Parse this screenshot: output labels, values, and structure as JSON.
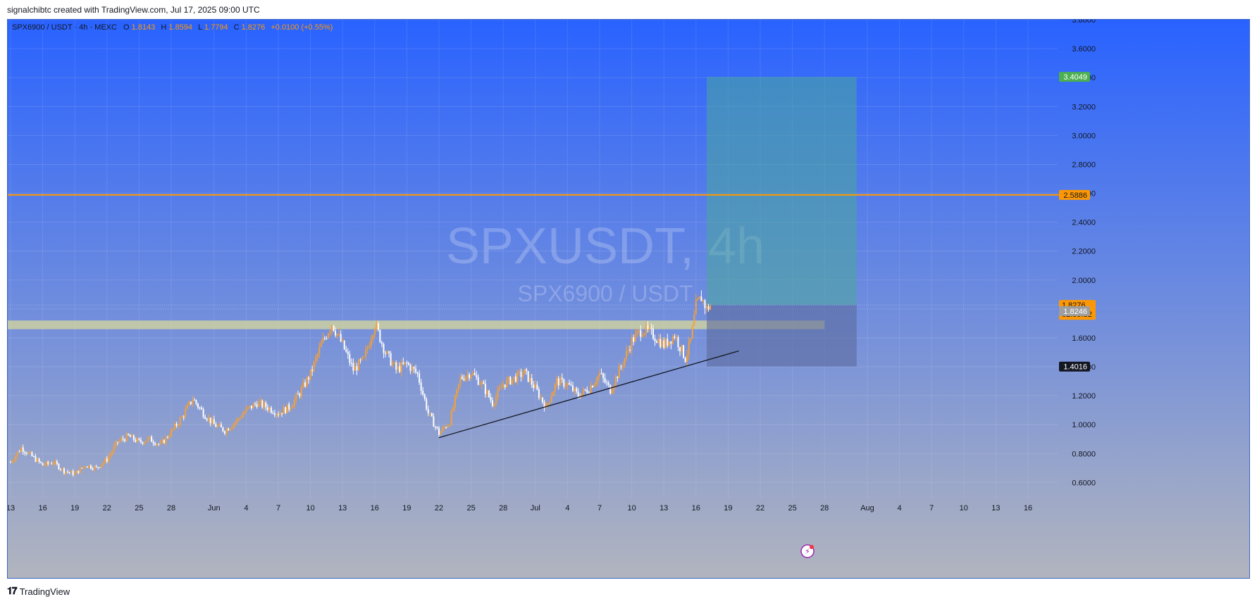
{
  "header": {
    "caption": "signalchibtc created with TradingView.com, Jul 17, 2025 09:00 UTC"
  },
  "footer": {
    "brand": "TradingView"
  },
  "symbol_bar": {
    "symbol": "SPX6900 / USDT · 4h · MEXC",
    "o_label": "O",
    "o_value": "1.8143",
    "h_label": "H",
    "h_value": "1.8594",
    "l_label": "L",
    "l_value": "1.7794",
    "c_label": "C",
    "c_value": "1.8276",
    "change": "+0.0100 (+0.55%)"
  },
  "watermark": {
    "title": "SPXUSDT, 4h",
    "subtitle": "SPX6900 / USDT"
  },
  "colors": {
    "bg_top": "#2962ff",
    "bg_bottom": "#b2b5be",
    "up": "#f7a035",
    "down": "#ffffff",
    "resistance_line": "#ff9800",
    "support_zone": "#e1dd94",
    "target_zone": "#4aa89a",
    "stop_zone": "#5c6b9e",
    "trendline": "#131722",
    "target_tag": "#4caf50",
    "price_tag": "#ff9800",
    "stop_tag": "#131722",
    "prev_tag": "#9e9e9e"
  },
  "chart_data": {
    "type": "candlestick",
    "symbol": "SPXUSDT",
    "timeframe": "4h",
    "y_axis": {
      "ticks": [
        "0.6000",
        "0.8000",
        "1.0000",
        "1.2000",
        "1.4000",
        "1.6000",
        "1.8000",
        "2.0000",
        "2.2000",
        "2.4000",
        "2.6000",
        "2.8000",
        "3.0000",
        "3.2000",
        "3.4000",
        "3.6000",
        "3.8000"
      ],
      "range": [
        0.49,
        3.8
      ]
    },
    "x_axis": {
      "labels": [
        {
          "date": "2025-05-13",
          "label": "13"
        },
        {
          "date": "2025-05-16",
          "label": "16"
        },
        {
          "date": "2025-05-19",
          "label": "19"
        },
        {
          "date": "2025-05-22",
          "label": "22"
        },
        {
          "date": "2025-05-25",
          "label": "25"
        },
        {
          "date": "2025-05-28",
          "label": "28"
        },
        {
          "date": "2025-06-01",
          "label": "Jun"
        },
        {
          "date": "2025-06-04",
          "label": "4"
        },
        {
          "date": "2025-06-07",
          "label": "7"
        },
        {
          "date": "2025-06-10",
          "label": "10"
        },
        {
          "date": "2025-06-13",
          "label": "13"
        },
        {
          "date": "2025-06-16",
          "label": "16"
        },
        {
          "date": "2025-06-19",
          "label": "19"
        },
        {
          "date": "2025-06-22",
          "label": "22"
        },
        {
          "date": "2025-06-25",
          "label": "25"
        },
        {
          "date": "2025-06-28",
          "label": "28"
        },
        {
          "date": "2025-07-01",
          "label": "Jul"
        },
        {
          "date": "2025-07-04",
          "label": "4"
        },
        {
          "date": "2025-07-07",
          "label": "7"
        },
        {
          "date": "2025-07-10",
          "label": "10"
        },
        {
          "date": "2025-07-13",
          "label": "13"
        },
        {
          "date": "2025-07-16",
          "label": "16"
        },
        {
          "date": "2025-07-19",
          "label": "19"
        },
        {
          "date": "2025-07-22",
          "label": "22"
        },
        {
          "date": "2025-07-25",
          "label": "25"
        },
        {
          "date": "2025-07-28",
          "label": "28"
        },
        {
          "date": "2025-08-01",
          "label": "Aug"
        },
        {
          "date": "2025-08-04",
          "label": "4"
        },
        {
          "date": "2025-08-07",
          "label": "7"
        },
        {
          "date": "2025-08-10",
          "label": "10"
        },
        {
          "date": "2025-08-13",
          "label": "13"
        },
        {
          "date": "2025-08-16",
          "label": "16"
        }
      ]
    },
    "price_path": [
      {
        "date": "2025-05-13",
        "price": 0.74
      },
      {
        "date": "2025-05-14",
        "price": 0.84
      },
      {
        "date": "2025-05-15",
        "price": 0.78
      },
      {
        "date": "2025-05-16",
        "price": 0.72
      },
      {
        "date": "2025-05-17",
        "price": 0.74
      },
      {
        "date": "2025-05-18",
        "price": 0.68
      },
      {
        "date": "2025-05-19",
        "price": 0.66
      },
      {
        "date": "2025-05-20",
        "price": 0.72
      },
      {
        "date": "2025-05-21",
        "price": 0.7
      },
      {
        "date": "2025-05-22",
        "price": 0.76
      },
      {
        "date": "2025-05-23",
        "price": 0.88
      },
      {
        "date": "2025-05-24",
        "price": 0.92
      },
      {
        "date": "2025-05-25",
        "price": 0.88
      },
      {
        "date": "2025-05-26",
        "price": 0.9
      },
      {
        "date": "2025-05-27",
        "price": 0.86
      },
      {
        "date": "2025-05-28",
        "price": 0.95
      },
      {
        "date": "2025-05-29",
        "price": 1.05
      },
      {
        "date": "2025-05-30",
        "price": 1.18
      },
      {
        "date": "2025-05-31",
        "price": 1.08
      },
      {
        "date": "2025-06-01",
        "price": 1.0
      },
      {
        "date": "2025-06-02",
        "price": 0.96
      },
      {
        "date": "2025-06-03",
        "price": 1.02
      },
      {
        "date": "2025-06-04",
        "price": 1.1
      },
      {
        "date": "2025-06-05",
        "price": 1.15
      },
      {
        "date": "2025-06-06",
        "price": 1.12
      },
      {
        "date": "2025-06-07",
        "price": 1.08
      },
      {
        "date": "2025-06-08",
        "price": 1.12
      },
      {
        "date": "2025-06-09",
        "price": 1.22
      },
      {
        "date": "2025-06-10",
        "price": 1.35
      },
      {
        "date": "2025-06-11",
        "price": 1.55
      },
      {
        "date": "2025-06-12",
        "price": 1.7
      },
      {
        "date": "2025-06-13",
        "price": 1.55
      },
      {
        "date": "2025-06-14",
        "price": 1.38
      },
      {
        "date": "2025-06-15",
        "price": 1.45
      },
      {
        "date": "2025-06-16",
        "price": 1.7
      },
      {
        "date": "2025-06-17",
        "price": 1.5
      },
      {
        "date": "2025-06-18",
        "price": 1.38
      },
      {
        "date": "2025-06-19",
        "price": 1.42
      },
      {
        "date": "2025-06-20",
        "price": 1.35
      },
      {
        "date": "2025-06-21",
        "price": 1.08
      },
      {
        "date": "2025-06-22",
        "price": 0.94
      },
      {
        "date": "2025-06-23",
        "price": 1.02
      },
      {
        "date": "2025-06-24",
        "price": 1.32
      },
      {
        "date": "2025-06-25",
        "price": 1.36
      },
      {
        "date": "2025-06-26",
        "price": 1.28
      },
      {
        "date": "2025-06-27",
        "price": 1.15
      },
      {
        "date": "2025-06-28",
        "price": 1.28
      },
      {
        "date": "2025-06-29",
        "price": 1.32
      },
      {
        "date": "2025-06-30",
        "price": 1.36
      },
      {
        "date": "2025-07-01",
        "price": 1.25
      },
      {
        "date": "2025-07-02",
        "price": 1.12
      },
      {
        "date": "2025-07-03",
        "price": 1.3
      },
      {
        "date": "2025-07-04",
        "price": 1.28
      },
      {
        "date": "2025-07-05",
        "price": 1.2
      },
      {
        "date": "2025-07-06",
        "price": 1.25
      },
      {
        "date": "2025-07-07",
        "price": 1.35
      },
      {
        "date": "2025-07-08",
        "price": 1.24
      },
      {
        "date": "2025-07-09",
        "price": 1.4
      },
      {
        "date": "2025-07-10",
        "price": 1.58
      },
      {
        "date": "2025-07-11",
        "price": 1.66
      },
      {
        "date": "2025-07-12",
        "price": 1.62
      },
      {
        "date": "2025-07-13",
        "price": 1.55
      },
      {
        "date": "2025-07-14",
        "price": 1.62
      },
      {
        "date": "2025-07-15",
        "price": 1.46
      },
      {
        "date": "2025-07-15T12:00",
        "price": 1.58
      },
      {
        "date": "2025-07-16",
        "price": 1.82
      },
      {
        "date": "2025-07-16T12:00",
        "price": 1.88
      },
      {
        "date": "2025-07-17",
        "price": 1.8
      },
      {
        "date": "2025-07-17T09:00",
        "price": 1.8276
      }
    ],
    "horizontal_levels": [
      {
        "price": 2.5886,
        "label": "2.5886",
        "style": "line"
      },
      {
        "price": 1.8246,
        "label": "1.8246",
        "style": "marker"
      }
    ],
    "current_price": {
      "price": 1.8276,
      "label": "1.8276",
      "countdown": "02:59:32"
    },
    "support_zone": {
      "from_date": "2025-05-13",
      "to_date": "2025-07-28",
      "low": 1.66,
      "high": 1.72
    },
    "trendline": {
      "from": {
        "date": "2025-06-22",
        "price": 0.91
      },
      "to": {
        "date": "2025-07-20",
        "price": 1.51
      }
    },
    "long_position": {
      "from_date": "2025-07-17",
      "to_date": "2025-07-31",
      "entry": 1.8276,
      "target": 3.4049,
      "stop": 1.4016,
      "target_label": "3.4049",
      "stop_label": "1.4016"
    },
    "grid": true
  }
}
